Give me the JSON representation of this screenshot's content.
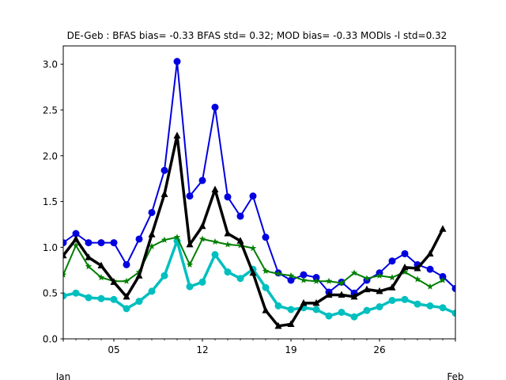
{
  "chart_data": {
    "type": "line",
    "title": "DE-Geb   : BFAS bias= -0.33 BFAS std= 0.32; MOD bias= -0.33 MODls -l std=0.32",
    "xlabel": "",
    "ylabel": "",
    "x_start_day": 1,
    "x_end_day": 32,
    "xlim": [
      1,
      32
    ],
    "ylim": [
      0.0,
      3.2
    ],
    "yticks": [
      0.0,
      0.5,
      1.0,
      1.5,
      2.0,
      2.5,
      3.0
    ],
    "ytick_labels": [
      "0.0",
      "0.5",
      "1.0",
      "1.5",
      "2.0",
      "2.5",
      "3.0"
    ],
    "xticks": [
      5,
      12,
      19,
      26
    ],
    "xtick_labels": [
      "05",
      "12",
      "19",
      "26"
    ],
    "x_month_labels": [
      {
        "day": 1,
        "label": "Jan"
      },
      {
        "day": 32,
        "label": "Feb"
      }
    ],
    "grid": false,
    "x": [
      1,
      2,
      3,
      4,
      5,
      6,
      7,
      8,
      9,
      10,
      11,
      12,
      13,
      14,
      15,
      16,
      17,
      18,
      19,
      20,
      21,
      22,
      23,
      24,
      25,
      26,
      27,
      28,
      29,
      30,
      31,
      32
    ],
    "series": [
      {
        "color": "#0000e0",
        "marker": "circle",
        "width": 2,
        "values": [
          1.05,
          1.15,
          1.05,
          1.05,
          1.05,
          0.81,
          1.09,
          1.38,
          1.84,
          3.03,
          1.56,
          1.73,
          2.53,
          1.55,
          1.34,
          1.56,
          1.11,
          0.72,
          0.64,
          0.7,
          0.67,
          0.51,
          0.62,
          0.5,
          0.64,
          0.72,
          0.85,
          0.93,
          0.81,
          0.76,
          0.68,
          0.55
        ]
      },
      {
        "color": "#00bfbf",
        "marker": "circle",
        "width": 3.5,
        "values": [
          0.47,
          0.5,
          0.45,
          0.44,
          0.43,
          0.33,
          0.41,
          0.52,
          0.69,
          1.07,
          0.57,
          0.62,
          0.92,
          0.73,
          0.66,
          0.76,
          0.56,
          0.36,
          0.32,
          0.34,
          0.32,
          0.25,
          0.29,
          0.24,
          0.31,
          0.35,
          0.42,
          0.43,
          0.38,
          0.36,
          0.34,
          0.28
        ]
      },
      {
        "color": "#007f00",
        "marker": "star",
        "width": 2,
        "values": [
          0.7,
          1.02,
          0.79,
          0.67,
          0.63,
          0.63,
          0.73,
          1.01,
          1.08,
          1.11,
          0.81,
          1.09,
          1.06,
          1.03,
          1.02,
          0.99,
          0.74,
          0.71,
          0.69,
          0.64,
          0.63,
          0.63,
          0.61,
          0.72,
          0.66,
          0.69,
          0.67,
          0.73,
          0.65,
          0.57,
          0.64,
          null
        ]
      },
      {
        "color": "#000000",
        "marker": "triangle",
        "width": 3.5,
        "values": [
          0.91,
          1.09,
          0.89,
          0.8,
          0.62,
          0.46,
          0.69,
          1.14,
          1.58,
          2.22,
          1.03,
          1.23,
          1.63,
          1.15,
          1.07,
          0.72,
          0.31,
          0.14,
          0.16,
          0.39,
          0.39,
          0.48,
          0.48,
          0.46,
          0.54,
          0.52,
          0.56,
          0.78,
          0.77,
          0.93,
          1.2,
          null
        ]
      }
    ]
  }
}
